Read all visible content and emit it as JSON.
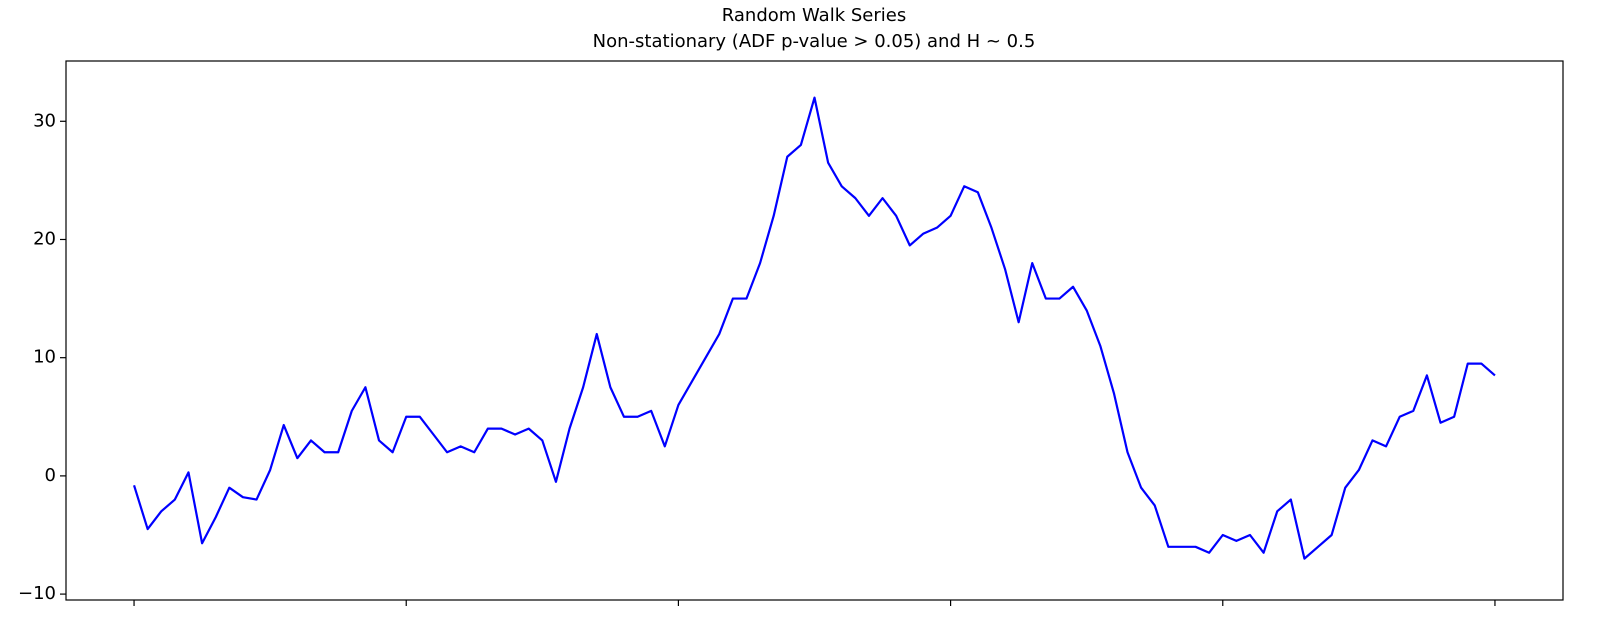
{
  "chart_data": {
    "type": "line",
    "title": "Random Walk Series",
    "subtitle": "Non-stationary (ADF p-value > 0.05) and H ~ 0.5",
    "x": [
      0,
      10,
      20,
      30,
      40,
      50,
      60,
      70,
      80,
      90,
      100,
      110,
      120,
      130,
      140,
      150,
      160,
      170,
      180,
      190,
      200,
      210,
      220,
      230,
      240,
      250,
      260,
      270,
      280,
      290,
      300,
      310,
      320,
      330,
      340,
      350,
      360,
      370,
      380,
      390,
      400,
      410,
      420,
      430,
      440,
      450,
      460,
      470,
      480,
      490,
      500,
      510,
      520,
      530,
      540,
      550,
      560,
      570,
      580,
      590,
      600,
      610,
      620,
      630,
      640,
      650,
      660,
      670,
      680,
      690,
      700,
      710,
      720,
      730,
      740,
      750,
      760,
      770,
      780,
      790,
      800,
      810,
      820,
      830,
      840,
      850,
      860,
      870,
      880,
      890,
      900,
      910,
      920,
      930,
      940,
      950,
      960,
      970,
      980,
      990,
      1000
    ],
    "series": [
      {
        "name": "Random Walk",
        "color": "#0000ff",
        "values": [
          -0.8,
          -4.5,
          -3,
          -2,
          0.3,
          -5.7,
          -3.5,
          -1,
          -1.8,
          -2,
          0.5,
          4.3,
          1.5,
          3,
          2,
          2,
          5.5,
          7.5,
          3,
          2,
          5,
          5,
          3.5,
          2,
          2.5,
          2,
          4,
          4,
          3.5,
          4,
          3,
          -0.5,
          4,
          7.5,
          12,
          7.5,
          5,
          5,
          5.5,
          2.5,
          6,
          8,
          10,
          12,
          15,
          15,
          18,
          22,
          27,
          28,
          32,
          26.5,
          24.5,
          23.5,
          22,
          23.5,
          22,
          19.5,
          20.5,
          21,
          22,
          24.5,
          24,
          21,
          17.5,
          13,
          18,
          15,
          15,
          16,
          14,
          11,
          7,
          2,
          -1,
          -2.5,
          -6,
          -6,
          -6,
          -6.5,
          -5,
          -5.5,
          -5,
          -6.5,
          -3,
          -2,
          -7,
          -6,
          -5,
          -1,
          0.5,
          3,
          2.5,
          5,
          5.5,
          8.5,
          4.5,
          5,
          9.5,
          9.5,
          8.5
        ]
      }
    ],
    "xlim": [
      -50,
      1050
    ],
    "xticks": [
      0,
      200,
      400,
      600,
      800,
      1000
    ],
    "ylim": [
      -10.5,
      35.1
    ],
    "yticks": [
      {
        "value": -10,
        "label": "−10"
      },
      0,
      10,
      20,
      30
    ],
    "grid": false
  }
}
